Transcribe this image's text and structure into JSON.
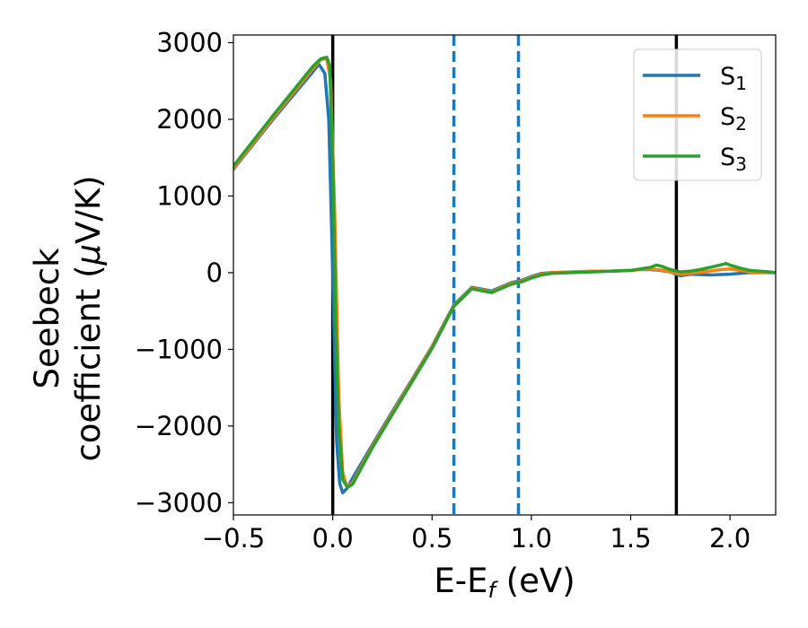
{
  "chart_data": {
    "type": "line",
    "xlabel": {
      "main": "E-E",
      "sub": "f",
      "unit": " (eV)"
    },
    "ylabel": {
      "line1": "Seebeck",
      "line2_pre": "coefficient  (",
      "mu": "μ",
      "line2_post": "V/K)"
    },
    "xlim": [
      -0.5,
      2.23
    ],
    "ylim": [
      -3160,
      3100
    ],
    "x_ticks": [
      -0.5,
      0.0,
      0.5,
      1.0,
      1.5,
      2.0
    ],
    "x_tick_labels": [
      "−0.5",
      "0.0",
      "0.5",
      "1.0",
      "1.5",
      "2.0"
    ],
    "y_ticks": [
      3000,
      2000,
      1000,
      0,
      -1000,
      -2000,
      -3000
    ],
    "y_tick_labels": [
      "3000",
      "2000",
      "1000",
      "0",
      "−1000",
      "−2000",
      "−3000"
    ],
    "legend_position": "top-right",
    "vlines": [
      {
        "x": 0.0,
        "style": "solid",
        "color": "#000000"
      },
      {
        "x": 1.73,
        "style": "solid",
        "color": "#000000"
      },
      {
        "x": 0.61,
        "style": "dashed",
        "color": "#1f77b4"
      },
      {
        "x": 0.935,
        "style": "dashed",
        "color": "#1f77b4"
      }
    ],
    "series": [
      {
        "name": "S",
        "sub": "1",
        "color": "#1f77b4",
        "x": [
          -0.5,
          -0.3,
          -0.1,
          -0.07,
          -0.04,
          -0.02,
          0.0,
          0.02,
          0.035,
          0.05,
          0.07,
          0.1,
          0.2,
          0.3,
          0.4,
          0.5,
          0.61,
          0.7,
          0.8,
          0.9,
          0.95,
          1.0,
          1.05,
          1.1,
          1.2,
          1.3,
          1.4,
          1.5,
          1.55,
          1.6,
          1.65,
          1.7,
          1.75,
          1.8,
          1.9,
          2.0,
          2.05,
          2.1,
          2.2,
          2.23
        ],
        "y": [
          1350,
          2000,
          2620,
          2720,
          2600,
          2000,
          0,
          -2200,
          -2750,
          -2870,
          -2820,
          -2680,
          -2240,
          -1810,
          -1390,
          -960,
          -420,
          -190,
          -240,
          -130,
          -100,
          -50,
          -10,
          0,
          10,
          15,
          20,
          30,
          40,
          40,
          30,
          10,
          -40,
          -20,
          -30,
          -20,
          -10,
          0,
          0,
          0
        ]
      },
      {
        "name": "S",
        "sub": "2",
        "color": "#ff7f0e",
        "x": [
          -0.5,
          -0.3,
          -0.1,
          -0.06,
          -0.03,
          -0.01,
          0.01,
          0.03,
          0.05,
          0.07,
          0.1,
          0.2,
          0.3,
          0.4,
          0.5,
          0.61,
          0.7,
          0.8,
          0.9,
          0.95,
          1.0,
          1.05,
          1.1,
          1.2,
          1.3,
          1.4,
          1.5,
          1.55,
          1.6,
          1.63,
          1.67,
          1.7,
          1.75,
          1.8,
          1.9,
          1.95,
          2.0,
          2.05,
          2.1,
          2.2,
          2.23
        ],
        "y": [
          1360,
          2020,
          2660,
          2780,
          2790,
          2500,
          800,
          -1600,
          -2600,
          -2790,
          -2740,
          -2260,
          -1830,
          -1400,
          -970,
          -430,
          -200,
          -250,
          -140,
          -110,
          -60,
          -20,
          0,
          10,
          20,
          20,
          30,
          40,
          50,
          40,
          30,
          10,
          -20,
          -10,
          20,
          40,
          50,
          30,
          10,
          0,
          0
        ]
      },
      {
        "name": "S",
        "sub": "3",
        "color": "#2ca02c",
        "x": [
          -0.5,
          -0.3,
          -0.1,
          -0.06,
          -0.03,
          -0.015,
          0.0,
          0.015,
          0.03,
          0.05,
          0.075,
          0.1,
          0.2,
          0.3,
          0.4,
          0.5,
          0.61,
          0.7,
          0.8,
          0.9,
          0.95,
          1.0,
          1.05,
          1.1,
          1.2,
          1.3,
          1.4,
          1.5,
          1.55,
          1.6,
          1.63,
          1.66,
          1.7,
          1.75,
          1.8,
          1.85,
          1.9,
          1.95,
          1.98,
          2.0,
          2.05,
          2.1,
          2.2,
          2.23
        ],
        "y": [
          1390,
          2050,
          2690,
          2790,
          2810,
          2700,
          1500,
          -600,
          -2000,
          -2700,
          -2800,
          -2760,
          -2280,
          -1850,
          -1420,
          -990,
          -440,
          -210,
          -260,
          -150,
          -120,
          -70,
          -30,
          -10,
          0,
          10,
          20,
          30,
          50,
          70,
          100,
          80,
          40,
          10,
          20,
          40,
          70,
          100,
          120,
          100,
          60,
          30,
          10,
          0
        ]
      }
    ]
  }
}
